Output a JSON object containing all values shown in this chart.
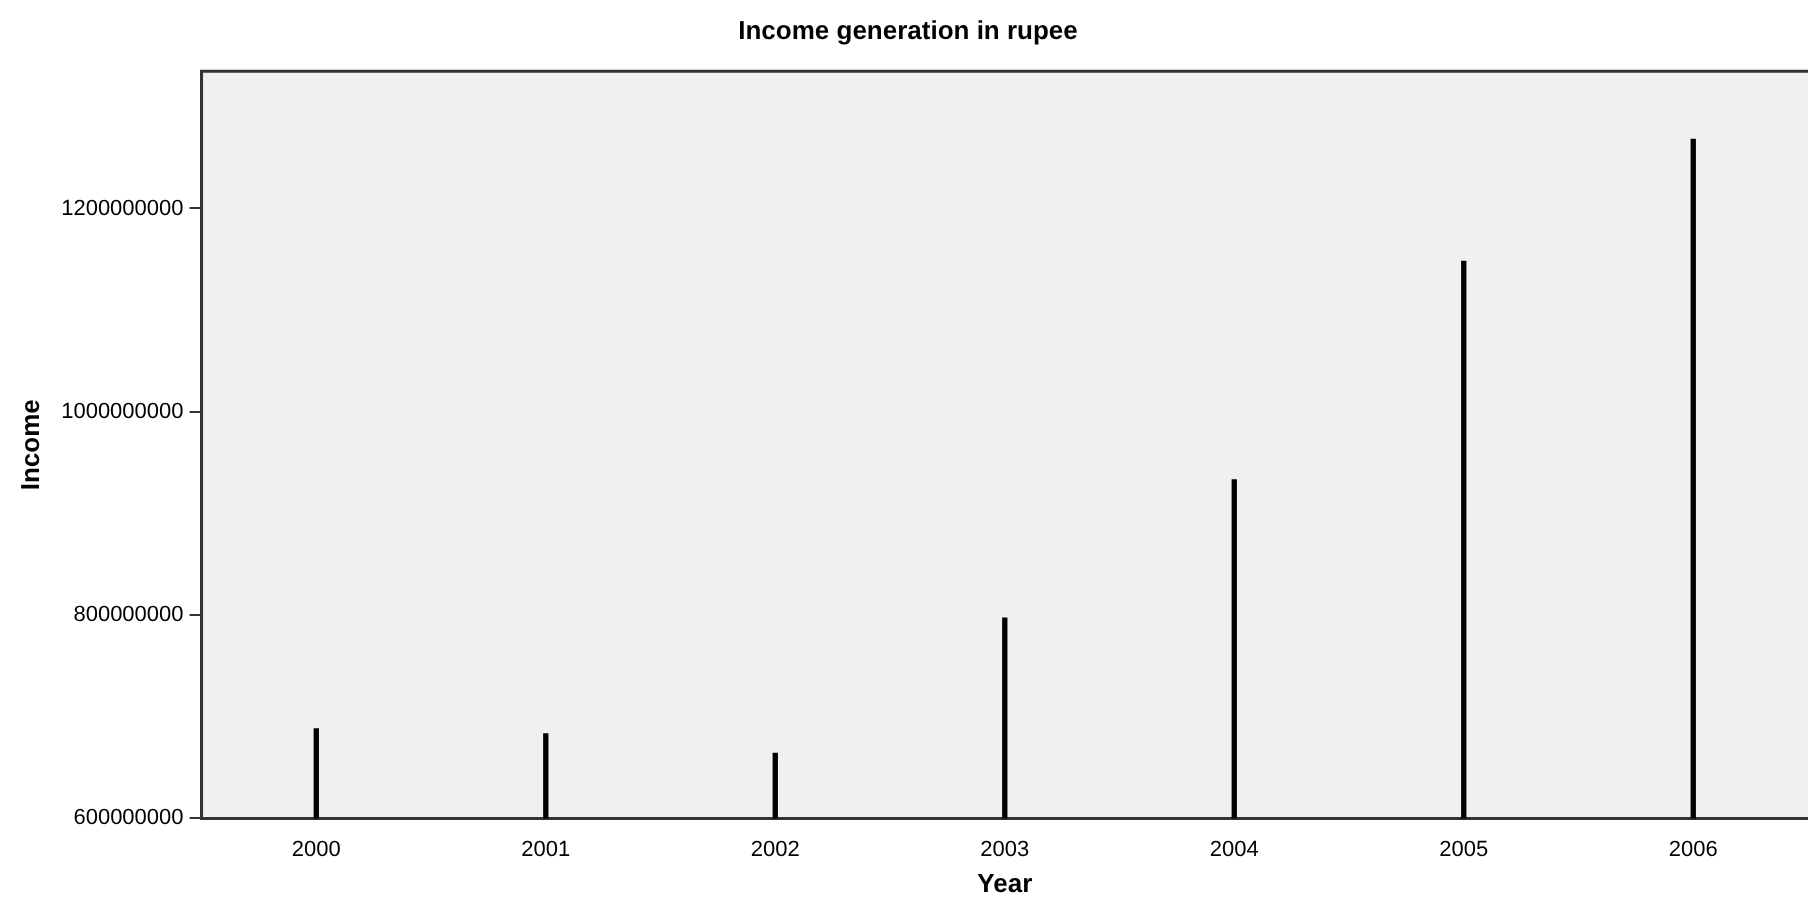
{
  "chart_data": {
    "type": "bar",
    "title": "Income generation in rupee",
    "xlabel": "Year",
    "ylabel": "Income",
    "categories": [
      "2000",
      "2001",
      "2002",
      "2003",
      "2004",
      "2005",
      "2006"
    ],
    "values": [
      688000000,
      683000000,
      664000000,
      797000000,
      933000000,
      1148000000,
      1268000000
    ],
    "color": "#000000",
    "ylim": [
      600000000,
      1335000000
    ],
    "yticks": [
      600000000,
      800000000,
      1000000000,
      1200000000
    ],
    "grid": false,
    "legend": false
  }
}
